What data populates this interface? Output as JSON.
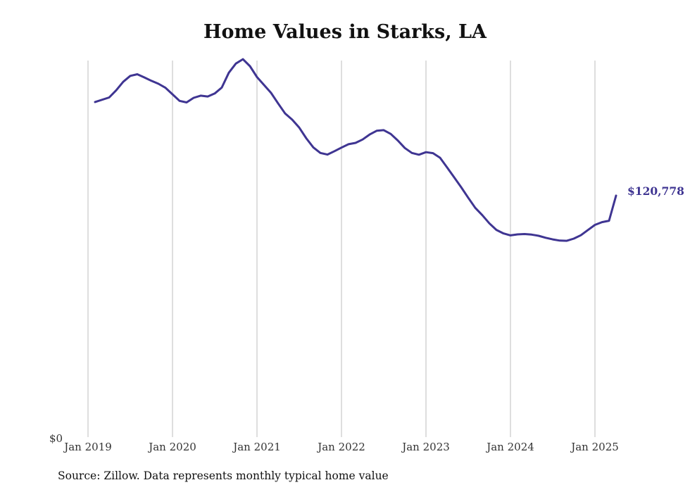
{
  "chart_data": {
    "type": "line",
    "title": "Home Values in Starks, LA",
    "xlabel": "",
    "ylabel": "",
    "y_tick_labels": [
      "$0"
    ],
    "ylim": [
      0,
      190000
    ],
    "x_tick_labels": [
      "Jan 2019",
      "Jan 2020",
      "Jan 2021",
      "Jan 2022",
      "Jan 2023",
      "Jan 2024",
      "Jan 2025"
    ],
    "grid": "vertical lines at each January",
    "line_color": "#3f3592",
    "end_label": "$120,778",
    "source": "Source: Zillow. Data represents monthly typical home value",
    "series": [
      {
        "x": [
          "2019-02",
          "2019-04",
          "2019-05",
          "2019-06",
          "2019-07",
          "2019-08",
          "2019-09",
          "2019-10",
          "2019-11",
          "2019-12",
          "2020-01",
          "2020-02",
          "2020-03",
          "2020-04",
          "2020-05",
          "2020-06",
          "2020-07",
          "2020-08",
          "2020-09",
          "2020-10",
          "2020-11",
          "2020-12",
          "2021-01",
          "2021-03",
          "2021-04",
          "2021-05",
          "2021-06",
          "2021-07",
          "2021-08",
          "2021-09",
          "2021-10",
          "2021-11",
          "2021-12",
          "2022-01",
          "2022-02",
          "2022-03",
          "2022-04",
          "2022-05",
          "2022-06",
          "2022-07",
          "2022-08",
          "2022-09",
          "2022-10",
          "2022-11",
          "2022-12",
          "2023-01",
          "2023-02",
          "2023-03",
          "2023-04",
          "2023-05",
          "2023-06",
          "2023-07",
          "2023-08",
          "2023-09",
          "2023-10",
          "2023-11",
          "2023-12",
          "2024-01",
          "2024-02",
          "2024-03",
          "2024-04",
          "2024-05",
          "2024-06",
          "2024-07",
          "2024-08",
          "2024-09",
          "2024-10",
          "2024-11",
          "2024-12",
          "2025-01",
          "2025-02",
          "2025-03",
          "2025-04"
        ],
        "values": [
          168000,
          170300,
          173900,
          178200,
          181200,
          182000,
          180400,
          178700,
          177200,
          175200,
          171900,
          168600,
          167800,
          170100,
          171200,
          170800,
          172300,
          175300,
          182800,
          187400,
          189600,
          186100,
          180600,
          172600,
          167300,
          162200,
          159100,
          155100,
          149700,
          145100,
          142300,
          141500,
          143200,
          145000,
          146700,
          147400,
          149100,
          151600,
          153500,
          153800,
          151900,
          148600,
          144800,
          142300,
          141400,
          142700,
          142200,
          139900,
          135000,
          130000,
          125000,
          119700,
          114600,
          110900,
          106800,
          103500,
          101700,
          100700,
          101200,
          101400,
          101100,
          100500,
          99500,
          98700,
          98100,
          98000,
          99100,
          100800,
          103400,
          106000,
          107400,
          108100,
          120778
        ]
      }
    ]
  }
}
